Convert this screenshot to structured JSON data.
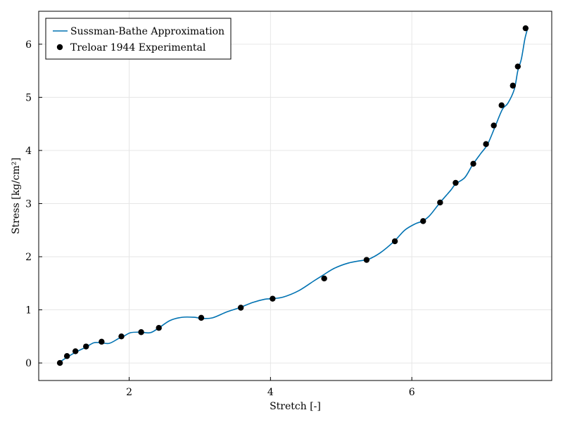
{
  "chart_data": {
    "type": "line",
    "xlabel": "Stretch [-]",
    "ylabel": "Stress [kg/cm²]",
    "xlim": [
      0.72,
      7.98
    ],
    "ylim": [
      -0.33,
      6.62
    ],
    "xticks": [
      2,
      4,
      6
    ],
    "yticks": [
      0,
      1,
      2,
      3,
      4,
      5,
      6
    ],
    "grid": true,
    "legend_position": "top-left",
    "colors": {
      "line": "#0072b2",
      "markers": "#000000",
      "grid": "#e6e6e6",
      "frame": "#000000"
    },
    "series": [
      {
        "name": "Sussman-Bathe Approximation",
        "kind": "line",
        "x": [
          1.0,
          1.1,
          1.24,
          1.39,
          1.5,
          1.6,
          1.72,
          1.85,
          1.92,
          2.02,
          2.16,
          2.3,
          2.42,
          2.58,
          2.75,
          2.92,
          3.02,
          3.18,
          3.38,
          3.56,
          3.75,
          3.92,
          4.02,
          4.18,
          4.4,
          4.62,
          4.74,
          4.9,
          5.1,
          5.3,
          5.37,
          5.55,
          5.75,
          5.9,
          6.05,
          6.15,
          6.25,
          6.4,
          6.55,
          6.62,
          6.75,
          6.86,
          6.98,
          7.07,
          7.17,
          7.28,
          7.36,
          7.45,
          7.5,
          7.55,
          7.6,
          7.64
        ],
        "y": [
          0.0,
          0.09,
          0.2,
          0.3,
          0.38,
          0.38,
          0.37,
          0.46,
          0.5,
          0.57,
          0.58,
          0.57,
          0.66,
          0.8,
          0.86,
          0.86,
          0.84,
          0.85,
          0.96,
          1.04,
          1.14,
          1.2,
          1.21,
          1.24,
          1.36,
          1.55,
          1.65,
          1.78,
          1.88,
          1.93,
          1.94,
          2.07,
          2.29,
          2.5,
          2.62,
          2.67,
          2.77,
          3.02,
          3.25,
          3.37,
          3.49,
          3.73,
          3.95,
          4.11,
          4.42,
          4.77,
          4.89,
          5.15,
          5.5,
          5.72,
          6.1,
          6.3
        ]
      },
      {
        "name": "Treloar 1944 Experimental",
        "kind": "scatter",
        "x": [
          1.02,
          1.12,
          1.24,
          1.39,
          1.61,
          1.89,
          2.17,
          2.42,
          3.02,
          3.58,
          4.03,
          4.76,
          5.36,
          5.76,
          6.16,
          6.4,
          6.62,
          6.87,
          7.05,
          7.16,
          7.27,
          7.43,
          7.5,
          7.61
        ],
        "y": [
          0.0,
          0.13,
          0.22,
          0.31,
          0.4,
          0.5,
          0.58,
          0.66,
          0.85,
          1.04,
          1.21,
          1.59,
          1.94,
          2.29,
          2.67,
          3.02,
          3.39,
          3.75,
          4.12,
          4.47,
          4.85,
          5.22,
          5.58,
          6.3
        ]
      }
    ]
  }
}
